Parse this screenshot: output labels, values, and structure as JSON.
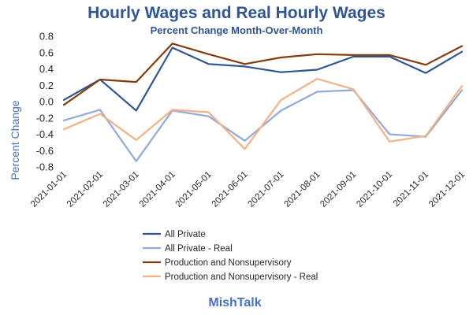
{
  "chart_data": {
    "type": "line",
    "title": "Hourly Wages and Real Hourly Wages",
    "subtitle": "Percent Change Month-Over-Month",
    "xlabel": "",
    "ylabel": "Percent Change",
    "ylim": [
      -0.8,
      0.8
    ],
    "yticks": [
      "0.8",
      "0.6",
      "0.4",
      "0.2",
      "0.0",
      "-0.2",
      "-0.4",
      "-0.6",
      "-0.8"
    ],
    "ytick_values": [
      0.8,
      0.6,
      0.4,
      0.2,
      0.0,
      -0.2,
      -0.4,
      -0.6,
      -0.8
    ],
    "grid": false,
    "legend_position": "bottom-left",
    "categories": [
      "2021-01-01",
      "2021-02-01",
      "2021-03-01",
      "2021-04-01",
      "2021-05-01",
      "2021-06-01",
      "2021-07-01",
      "2021-08-01",
      "2021-09-01",
      "2021-10-01",
      "2021-11-01",
      "2021-12-01"
    ],
    "series": [
      {
        "name": "All Private",
        "color": "#2f5597",
        "values": [
          0.02,
          0.27,
          -0.11,
          0.66,
          0.46,
          0.43,
          0.36,
          0.39,
          0.55,
          0.55,
          0.35,
          0.61
        ]
      },
      {
        "name": "All Private - Real",
        "color": "#8faadc",
        "values": [
          -0.23,
          -0.1,
          -0.73,
          -0.11,
          -0.18,
          -0.48,
          -0.11,
          0.12,
          0.14,
          -0.4,
          -0.43,
          0.14
        ]
      },
      {
        "name": "Production and Nonsupervisory",
        "color": "#843c0c",
        "values": [
          -0.04,
          0.27,
          0.24,
          0.71,
          0.58,
          0.46,
          0.54,
          0.58,
          0.57,
          0.57,
          0.45,
          0.68
        ]
      },
      {
        "name": "Production and Nonsupervisory - Real",
        "color": "#f4b183",
        "values": [
          -0.34,
          -0.15,
          -0.47,
          -0.1,
          -0.13,
          -0.58,
          0.02,
          0.28,
          0.15,
          -0.49,
          -0.42,
          0.19
        ]
      }
    ]
  },
  "footer": {
    "text": "MishTalk"
  }
}
